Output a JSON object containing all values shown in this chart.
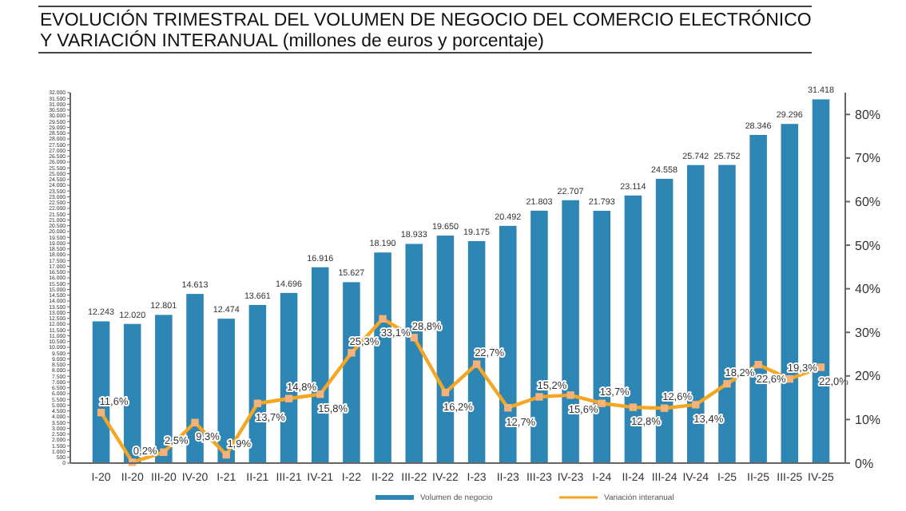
{
  "chart_data": {
    "type": "bar",
    "title": "EVOLUCIÓN TRIMESTRAL DEL VOLUMEN DE NEGOCIO DEL COMERCIO ELECTRÓNICO\nY VARIACIÓN INTERANUAL (millones de euros y porcentaje)",
    "categories": [
      "I-20",
      "II-20",
      "III-20",
      "IV-20",
      "I-21",
      "II-21",
      "III-21",
      "IV-21",
      "I-22",
      "II-22",
      "III-22",
      "IV-22",
      "I-23",
      "II-23",
      "III-23",
      "IV-23",
      "I-24",
      "II-24",
      "III-24",
      "IV-24",
      "I-25",
      "II-25",
      "III-25",
      "IV-25"
    ],
    "series": [
      {
        "name": "Volumen de negocio",
        "color": "#2e86b5",
        "values": [
          12243,
          12020,
          12801,
          14613,
          12474,
          13661,
          14696,
          16916,
          15627,
          18190,
          18933,
          19650,
          19175,
          20492,
          21803,
          22707,
          21793,
          23114,
          24558,
          25742,
          25752,
          28346,
          29296,
          31418
        ],
        "value_labels": [
          "12.243",
          "12.020",
          "12.801",
          "14.613",
          "12.474",
          "13.661",
          "14.696",
          "16.916",
          "15.627",
          "18.190",
          "18.933",
          "19.650",
          "19.175",
          "20.492",
          "21.803",
          "22.707",
          "21.793",
          "23.114",
          "24.558",
          "25.742",
          "25.752",
          "28.346",
          "29.296",
          "31.418"
        ]
      },
      {
        "name": "Variación interanual",
        "type": "line",
        "axis": "y2",
        "color": "#f5a623",
        "marker": "square",
        "values": [
          11.6,
          0.2,
          2.5,
          9.3,
          1.9,
          13.7,
          14.8,
          15.8,
          25.3,
          33.1,
          28.8,
          16.2,
          22.7,
          12.7,
          15.2,
          15.6,
          13.7,
          12.8,
          12.6,
          13.4,
          18.2,
          22.6,
          19.3,
          22.0
        ],
        "value_labels": [
          "11,6%",
          "0,2%",
          "2,5%",
          "9,3%",
          "1,9%",
          "13,7%",
          "14,8%",
          "15,8%",
          "25,3%",
          "33,1%",
          "28,8%",
          "16,2%",
          "22,7%",
          "12,7%",
          "15,2%",
          "15,6%",
          "13,7%",
          "12,8%",
          "12,6%",
          "13,4%",
          "18,2%",
          "22,6%",
          "19,3%",
          "22,0%"
        ]
      }
    ],
    "ylim": [
      0,
      32000
    ],
    "yticks": [
      0,
      500,
      {
        "value": 1000,
        "label": "1.000"
      },
      {
        "value": 1500,
        "label": "1.500"
      },
      {
        "value": 2000,
        "label": "2.000"
      },
      {
        "value": 2500,
        "label": "2.500"
      },
      {
        "value": 3000,
        "label": "3.000"
      },
      {
        "value": 3500,
        "label": "3.500"
      },
      {
        "value": 4000,
        "label": "4.000"
      },
      {
        "value": 4500,
        "label": "4.500"
      },
      {
        "value": 5000,
        "label": "5.000"
      },
      {
        "value": 5500,
        "label": "5.500"
      },
      {
        "value": 6000,
        "label": "6.000"
      },
      {
        "value": 6500,
        "label": "6.500"
      },
      {
        "value": 7000,
        "label": "7.000"
      },
      {
        "value": 7500,
        "label": "7.500"
      },
      {
        "value": 8000,
        "label": "8.000"
      },
      {
        "value": 8500,
        "label": "8.500"
      },
      {
        "value": 9000,
        "label": "9.000"
      },
      {
        "value": 9500,
        "label": "9.500"
      },
      {
        "value": 10000,
        "label": "10.000"
      },
      {
        "value": 10500,
        "label": "10.500"
      },
      {
        "value": 11000,
        "label": "11.000"
      },
      {
        "value": 11500,
        "label": "11.500"
      },
      {
        "value": 12000,
        "label": "12.000"
      },
      {
        "value": 12500,
        "label": "12.500"
      },
      {
        "value": 13000,
        "label": "13.000"
      },
      {
        "value": 13500,
        "label": "13.500"
      },
      {
        "value": 14000,
        "label": "14.000"
      },
      {
        "value": 14500,
        "label": "14.500"
      },
      {
        "value": 15000,
        "label": "15.000"
      },
      {
        "value": 15500,
        "label": "15.500"
      },
      {
        "value": 16000,
        "label": "16.000"
      },
      {
        "value": 16500,
        "label": "16.500"
      },
      {
        "value": 17000,
        "label": "17.000"
      },
      {
        "value": 17500,
        "label": "17.500"
      },
      {
        "value": 18000,
        "label": "18.000"
      },
      {
        "value": 18500,
        "label": "18.500"
      },
      {
        "value": 19000,
        "label": "19.000"
      },
      {
        "value": 19500,
        "label": "19.500"
      },
      {
        "value": 20000,
        "label": "20.000"
      },
      {
        "value": 20500,
        "label": "20.500"
      },
      {
        "value": 21000,
        "label": "21.000"
      },
      {
        "value": 21500,
        "label": "21.500"
      },
      {
        "value": 22000,
        "label": "22.000"
      },
      {
        "value": 22500,
        "label": "22.500"
      },
      {
        "value": 23000,
        "label": "23.000"
      },
      {
        "value": 23500,
        "label": "23.500"
      },
      {
        "value": 24000,
        "label": "24.000"
      },
      {
        "value": 24500,
        "label": "24.500"
      },
      {
        "value": 25000,
        "label": "25.000"
      },
      {
        "value": 25500,
        "label": "25.500"
      },
      {
        "value": 26000,
        "label": "26.000"
      },
      {
        "value": 26500,
        "label": "26.500"
      },
      {
        "value": 27000,
        "label": "27.000"
      },
      {
        "value": 27500,
        "label": "27.500"
      },
      {
        "value": 28000,
        "label": "28.000"
      },
      {
        "value": 28500,
        "label": "28.500"
      },
      {
        "value": 29000,
        "label": "29.000"
      },
      {
        "value": 29500,
        "label": "29.500"
      },
      {
        "value": 30000,
        "label": "30.000"
      },
      {
        "value": 30500,
        "label": "30.500"
      },
      {
        "value": 31000,
        "label": "31.000"
      },
      {
        "value": 31500,
        "label": "31.500"
      },
      {
        "value": 32000,
        "label": "32.000"
      }
    ],
    "y2lim": [
      0,
      85
    ],
    "y2ticks": [
      {
        "value": 0,
        "label": "0%"
      },
      {
        "value": 10,
        "label": "10%"
      },
      {
        "value": 20,
        "label": "20%"
      },
      {
        "value": 30,
        "label": "30%"
      },
      {
        "value": 40,
        "label": "40%"
      },
      {
        "value": 50,
        "label": "50%"
      },
      {
        "value": 60,
        "label": "60%"
      },
      {
        "value": 70,
        "label": "70%"
      },
      {
        "value": 80,
        "label": "80%"
      }
    ],
    "legend": "bottom",
    "grid": false
  }
}
